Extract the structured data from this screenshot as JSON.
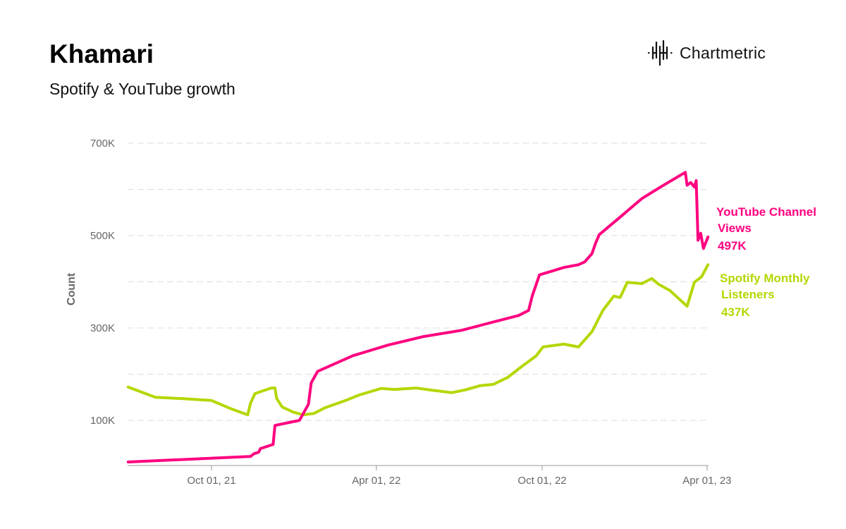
{
  "header": {
    "title": "Khamari",
    "subtitle": "Spotify & YouTube growth",
    "logo_text": "Chartmetric"
  },
  "chart_data": {
    "type": "line",
    "title": "Khamari",
    "subtitle": "Spotify & YouTube growth",
    "xlabel": "",
    "ylabel": "Count",
    "x_unit": "days since Jul 01, 2021",
    "xlim": [
      0,
      640
    ],
    "ylim": [
      0,
      700000
    ],
    "grid": true,
    "x_ticks": [
      {
        "day": 92,
        "label": "Oct 01, 21"
      },
      {
        "day": 274,
        "label": "Apr 01, 22"
      },
      {
        "day": 457,
        "label": "Oct 01, 22"
      },
      {
        "day": 639,
        "label": "Apr 01, 23"
      }
    ],
    "y_ticks": [
      {
        "value": 100000,
        "label": "100K"
      },
      {
        "value": 300000,
        "label": "300K"
      },
      {
        "value": 500000,
        "label": "500K"
      },
      {
        "value": 700000,
        "label": "700K"
      }
    ],
    "y_gridlines": [
      100000,
      200000,
      300000,
      400000,
      500000,
      600000,
      700000
    ],
    "series": [
      {
        "name": "YouTube Channel Views",
        "name_lines": [
          "YouTube Channel",
          "Views"
        ],
        "last_label": "497K",
        "color": "#ff0080",
        "points": [
          [
            0,
            10000
          ],
          [
            135,
            22000
          ],
          [
            139,
            28000
          ],
          [
            144,
            31000
          ],
          [
            146,
            39000
          ],
          [
            160,
            48000
          ],
          [
            162,
            89000
          ],
          [
            189,
            100000
          ],
          [
            199,
            135000
          ],
          [
            202,
            181000
          ],
          [
            209,
            206000
          ],
          [
            248,
            240000
          ],
          [
            287,
            263000
          ],
          [
            325,
            281000
          ],
          [
            368,
            295000
          ],
          [
            403,
            313000
          ],
          [
            431,
            327000
          ],
          [
            442,
            338000
          ],
          [
            446,
            369000
          ],
          [
            454,
            415000
          ],
          [
            481,
            431000
          ],
          [
            497,
            437000
          ],
          [
            504,
            443000
          ],
          [
            512,
            461000
          ],
          [
            516,
            484000
          ],
          [
            520,
            502000
          ],
          [
            543,
            540000
          ],
          [
            567,
            580000
          ],
          [
            590,
            608000
          ],
          [
            615,
            637000
          ],
          [
            617,
            609000
          ],
          [
            621,
            615000
          ],
          [
            625,
            605000
          ],
          [
            627,
            619000
          ],
          [
            629,
            490000
          ],
          [
            632,
            505000
          ],
          [
            635,
            472000
          ],
          [
            640,
            497000
          ]
        ]
      },
      {
        "name": "Spotify Monthly Listeners",
        "name_lines": [
          "Spotify Monthly",
          "Listeners"
        ],
        "last_label": "437K",
        "color": "#b4d700",
        "points": [
          [
            0,
            172000
          ],
          [
            30,
            150000
          ],
          [
            61,
            147000
          ],
          [
            92,
            143000
          ],
          [
            115,
            124000
          ],
          [
            132,
            112000
          ],
          [
            135,
            137000
          ],
          [
            140,
            158000
          ],
          [
            158,
            170000
          ],
          [
            162,
            170000
          ],
          [
            164,
            147000
          ],
          [
            170,
            129000
          ],
          [
            182,
            118000
          ],
          [
            193,
            112000
          ],
          [
            205,
            115000
          ],
          [
            217,
            127000
          ],
          [
            240,
            143000
          ],
          [
            255,
            155000
          ],
          [
            279,
            169000
          ],
          [
            294,
            167000
          ],
          [
            318,
            170000
          ],
          [
            333,
            166000
          ],
          [
            357,
            160000
          ],
          [
            372,
            166000
          ],
          [
            388,
            175000
          ],
          [
            403,
            178000
          ],
          [
            419,
            193000
          ],
          [
            434,
            216000
          ],
          [
            450,
            239000
          ],
          [
            458,
            259000
          ],
          [
            481,
            265000
          ],
          [
            497,
            259000
          ],
          [
            512,
            292000
          ],
          [
            524,
            338000
          ],
          [
            536,
            369000
          ],
          [
            543,
            366000
          ],
          [
            551,
            399000
          ],
          [
            567,
            396000
          ],
          [
            578,
            407000
          ],
          [
            586,
            394000
          ],
          [
            598,
            381000
          ],
          [
            617,
            347000
          ],
          [
            625,
            399000
          ],
          [
            633,
            411000
          ],
          [
            640,
            437000
          ]
        ]
      }
    ]
  }
}
